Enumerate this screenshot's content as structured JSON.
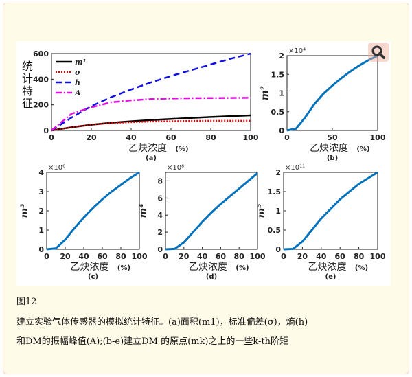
{
  "caption": {
    "figure_label": "图12",
    "line1": "建立实验气体传感器的模拟统计特征。(a)面积(m1)，标准偏差(σ)，熵(h)",
    "line2": "和DM的振幅峰值(A);(b-e)建立DM 的原点(mk)之上的一些k-th阶矩"
  },
  "zoom_icon": "magnifier-icon",
  "chart_data": [
    {
      "panel": "(a)",
      "type": "line",
      "xlabel": "乙炔浓度",
      "xunit": "(%)",
      "ylabel": "统计特征",
      "xlim": [
        0,
        100
      ],
      "ylim": [
        0,
        600
      ],
      "xticks": [
        0,
        20,
        40,
        60,
        80,
        100
      ],
      "yticks": [
        0,
        200,
        400,
        600
      ],
      "legend_placement": "top-left",
      "x": [
        0,
        10,
        20,
        30,
        40,
        50,
        60,
        70,
        80,
        90,
        100
      ],
      "series": [
        {
          "name": "m¹",
          "color": "#000000",
          "style": "solid",
          "values": [
            0,
            25,
            45,
            60,
            72,
            82,
            90,
            98,
            105,
            112,
            118
          ]
        },
        {
          "name": "σ",
          "color": "#e00000",
          "style": "dotted",
          "values": [
            0,
            25,
            45,
            58,
            65,
            70,
            72,
            74,
            75,
            76,
            76
          ]
        },
        {
          "name": "h",
          "color": "#1010e0",
          "style": "dashed",
          "values": [
            0,
            100,
            190,
            260,
            320,
            375,
            425,
            470,
            515,
            560,
            600
          ]
        },
        {
          "name": "A",
          "color": "#e010e0",
          "style": "dashdot",
          "values": [
            0,
            130,
            180,
            220,
            235,
            245,
            250,
            252,
            253,
            254,
            255
          ]
        }
      ]
    },
    {
      "panel": "(b)",
      "type": "line",
      "xlabel": "乙炔浓度",
      "xunit": "(%)",
      "ylabel": "m²",
      "multiplier": "×10⁴",
      "xlim": [
        0,
        100
      ],
      "ylim": [
        0,
        2
      ],
      "xticks": [
        0,
        50,
        100
      ],
      "yticks": [
        0,
        0.5,
        1,
        1.5,
        2
      ],
      "x": [
        0,
        10,
        20,
        30,
        40,
        50,
        60,
        70,
        80,
        90,
        100
      ],
      "series": [
        {
          "color": "#0072bd",
          "values": [
            0,
            0.05,
            0.35,
            0.7,
            0.98,
            1.2,
            1.4,
            1.58,
            1.74,
            1.88,
            2.0
          ]
        }
      ]
    },
    {
      "panel": "(c)",
      "type": "line",
      "xlabel": "乙炔浓度",
      "xunit": "(%)",
      "ylabel": "m³",
      "multiplier": "×10⁶",
      "xlim": [
        0,
        100
      ],
      "ylim": [
        0,
        4
      ],
      "xticks": [
        0,
        20,
        40,
        60,
        80,
        100
      ],
      "yticks": [
        0,
        1,
        2,
        3,
        4
      ],
      "x": [
        0,
        10,
        20,
        30,
        40,
        50,
        60,
        70,
        80,
        90,
        100
      ],
      "series": [
        {
          "color": "#0072bd",
          "values": [
            0,
            0.05,
            0.5,
            1.1,
            1.65,
            2.15,
            2.6,
            3.0,
            3.35,
            3.7,
            4.0
          ]
        }
      ]
    },
    {
      "panel": "(d)",
      "type": "line",
      "xlabel": "乙炔浓度",
      "xunit": "(%)",
      "ylabel": "m⁴",
      "multiplier": "×10⁸",
      "xlim": [
        0,
        100
      ],
      "ylim": [
        0,
        9
      ],
      "xticks": [
        0,
        20,
        40,
        60,
        80,
        100
      ],
      "yticks": [
        0,
        2,
        4,
        6,
        8
      ],
      "x": [
        0,
        10,
        20,
        30,
        40,
        50,
        60,
        70,
        80,
        90,
        100
      ],
      "series": [
        {
          "color": "#0072bd",
          "values": [
            0,
            0.05,
            0.8,
            2.0,
            3.2,
            4.3,
            5.3,
            6.2,
            7.1,
            8.0,
            8.9
          ]
        }
      ]
    },
    {
      "panel": "(e)",
      "type": "line",
      "xlabel": "乙炔浓度",
      "xunit": "(%)",
      "ylabel": "m⁵",
      "multiplier": "×10¹¹",
      "xlim": [
        0,
        100
      ],
      "ylim": [
        0,
        2
      ],
      "xticks": [
        0,
        20,
        40,
        60,
        80,
        100
      ],
      "yticks": [
        0,
        0.5,
        1,
        1.5,
        2
      ],
      "x": [
        0,
        10,
        20,
        30,
        40,
        50,
        60,
        70,
        80,
        90,
        100
      ],
      "series": [
        {
          "color": "#0072bd",
          "values": [
            0,
            0.01,
            0.2,
            0.5,
            0.8,
            1.05,
            1.3,
            1.5,
            1.7,
            1.85,
            2.0
          ]
        }
      ]
    }
  ]
}
